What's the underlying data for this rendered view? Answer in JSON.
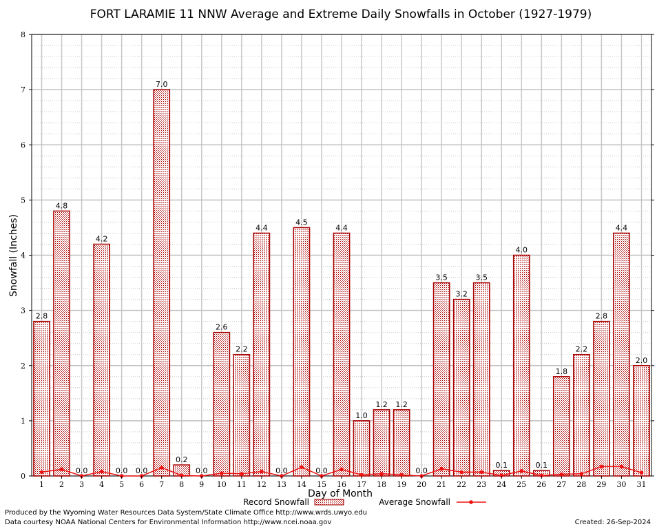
{
  "chart_data": {
    "type": "bar",
    "title": "FORT LARAMIE 11 NNW Average and Extreme Daily Snowfalls in October (1927-1979)",
    "xlabel": "Day of Month",
    "ylabel": "Snowfall (Inches)",
    "ylim": [
      0,
      8
    ],
    "yticks": [
      "0",
      "1",
      "2",
      "3",
      "4",
      "5",
      "6",
      "7",
      "8"
    ],
    "categories": [
      "1",
      "2",
      "3",
      "4",
      "5",
      "6",
      "7",
      "8",
      "9",
      "10",
      "11",
      "12",
      "13",
      "14",
      "15",
      "16",
      "17",
      "18",
      "19",
      "20",
      "21",
      "22",
      "23",
      "24",
      "25",
      "26",
      "27",
      "28",
      "29",
      "30",
      "31"
    ],
    "series": [
      {
        "name": "Record Snowfall",
        "kind": "bar",
        "color": "#aa0000",
        "values": [
          2.8,
          4.8,
          0.0,
          4.2,
          0.0,
          0.0,
          7.0,
          0.2,
          0.0,
          2.6,
          2.2,
          4.4,
          0.0,
          4.5,
          0.0,
          4.4,
          1.0,
          1.2,
          1.2,
          0.0,
          3.5,
          3.2,
          3.5,
          0.1,
          4.0,
          0.1,
          1.8,
          2.2,
          2.8,
          4.4,
          2.0
        ],
        "labels": [
          "2.8",
          "4.8",
          "0.0",
          "4.2",
          "0.0",
          "0.0",
          "7.0",
          "0.2",
          "0.0",
          "2.6",
          "2.2",
          "4.4",
          "0.0",
          "4.5",
          "0.0",
          "4.4",
          "1.0",
          "1.2",
          "1.2",
          "0.0",
          "3.5",
          "3.2",
          "3.5",
          "0.1",
          "4.0",
          "0.1",
          "1.8",
          "2.2",
          "2.8",
          "4.4",
          "2.0"
        ]
      },
      {
        "name": "Average Snowfall",
        "kind": "line",
        "color": "#ee1111",
        "values": [
          0.07,
          0.12,
          0.0,
          0.08,
          0.0,
          0.0,
          0.15,
          0.01,
          0.0,
          0.05,
          0.04,
          0.08,
          0.0,
          0.16,
          0.0,
          0.12,
          0.02,
          0.04,
          0.02,
          0.0,
          0.13,
          0.07,
          0.07,
          0.01,
          0.09,
          0.01,
          0.03,
          0.04,
          0.17,
          0.17,
          0.06
        ]
      }
    ],
    "grid": true,
    "legend": "bottom"
  },
  "footer": {
    "produced_by": "Produced by the Wyoming Water Resources Data System/State Climate Office http://www.wrds.uwyo.edu",
    "courtesy": "Data courtesy NOAA National Centers for Environmental Information http://www.ncei.noaa.gov",
    "created": "Created:  26-Sep-2024"
  }
}
